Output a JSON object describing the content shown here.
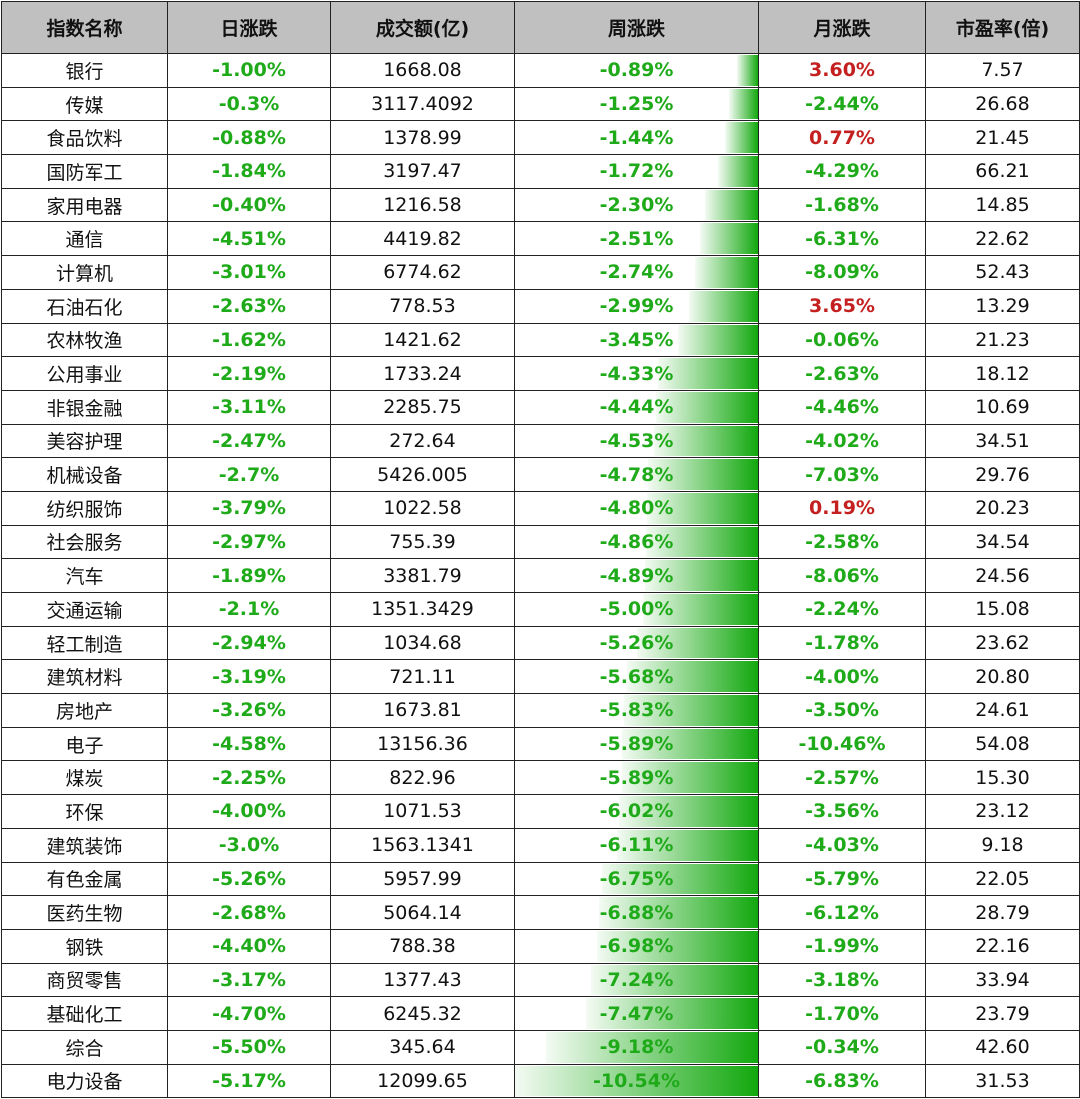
{
  "headers": [
    "指数名称",
    "日涨跌",
    "成交额(亿)",
    "周涨跌",
    "月涨跌",
    "市盈率(倍)"
  ],
  "rows": [
    {
      "name": "银行",
      "day": "-1.00%",
      "volume": "1668.08",
      "week": "-0.89%",
      "week_value": -0.89,
      "month": "3.60%",
      "pe": "7.57"
    },
    {
      "name": "传媒",
      "day": "-0.3%",
      "volume": "3117.4092",
      "week": "-1.25%",
      "week_value": -1.25,
      "month": "-2.44%",
      "pe": "26.68"
    },
    {
      "name": "食品饮料",
      "day": "-0.88%",
      "volume": "1378.99",
      "week": "-1.44%",
      "week_value": -1.44,
      "month": "0.77%",
      "pe": "21.45"
    },
    {
      "name": "国防军工",
      "day": "-1.84%",
      "volume": "3197.47",
      "week": "-1.72%",
      "week_value": -1.72,
      "month": "-4.29%",
      "pe": "66.21"
    },
    {
      "name": "家用电器",
      "day": "-0.40%",
      "volume": "1216.58",
      "week": "-2.30%",
      "week_value": -2.3,
      "month": "-1.68%",
      "pe": "14.85"
    },
    {
      "name": "通信",
      "day": "-4.51%",
      "volume": "4419.82",
      "week": "-2.51%",
      "week_value": -2.51,
      "month": "-6.31%",
      "pe": "22.62"
    },
    {
      "name": "计算机",
      "day": "-3.01%",
      "volume": "6774.62",
      "week": "-2.74%",
      "week_value": -2.74,
      "month": "-8.09%",
      "pe": "52.43"
    },
    {
      "name": "石油石化",
      "day": "-2.63%",
      "volume": "778.53",
      "week": "-2.99%",
      "week_value": -2.99,
      "month": "3.65%",
      "pe": "13.29"
    },
    {
      "name": "农林牧渔",
      "day": "-1.62%",
      "volume": "1421.62",
      "week": "-3.45%",
      "week_value": -3.45,
      "month": "-0.06%",
      "pe": "21.23"
    },
    {
      "name": "公用事业",
      "day": "-2.19%",
      "volume": "1733.24",
      "week": "-4.33%",
      "week_value": -4.33,
      "month": "-2.63%",
      "pe": "18.12"
    },
    {
      "name": "非银金融",
      "day": "-3.11%",
      "volume": "2285.75",
      "week": "-4.44%",
      "week_value": -4.44,
      "month": "-4.46%",
      "pe": "10.69"
    },
    {
      "name": "美容护理",
      "day": "-2.47%",
      "volume": "272.64",
      "week": "-4.53%",
      "week_value": -4.53,
      "month": "-4.02%",
      "pe": "34.51"
    },
    {
      "name": "机械设备",
      "day": "-2.7%",
      "volume": "5426.005",
      "week": "-4.78%",
      "week_value": -4.78,
      "month": "-7.03%",
      "pe": "29.76"
    },
    {
      "name": "纺织服饰",
      "day": "-3.79%",
      "volume": "1022.58",
      "week": "-4.80%",
      "week_value": -4.8,
      "month": "0.19%",
      "pe": "20.23"
    },
    {
      "name": "社会服务",
      "day": "-2.97%",
      "volume": "755.39",
      "week": "-4.86%",
      "week_value": -4.86,
      "month": "-2.58%",
      "pe": "34.54"
    },
    {
      "name": "汽车",
      "day": "-1.89%",
      "volume": "3381.79",
      "week": "-4.89%",
      "week_value": -4.89,
      "month": "-8.06%",
      "pe": "24.56"
    },
    {
      "name": "交通运输",
      "day": "-2.1%",
      "volume": "1351.3429",
      "week": "-5.00%",
      "week_value": -5.0,
      "month": "-2.24%",
      "pe": "15.08"
    },
    {
      "name": "轻工制造",
      "day": "-2.94%",
      "volume": "1034.68",
      "week": "-5.26%",
      "week_value": -5.26,
      "month": "-1.78%",
      "pe": "23.62"
    },
    {
      "name": "建筑材料",
      "day": "-3.19%",
      "volume": "721.11",
      "week": "-5.68%",
      "week_value": -5.68,
      "month": "-4.00%",
      "pe": "20.80"
    },
    {
      "name": "房地产",
      "day": "-3.26%",
      "volume": "1673.81",
      "week": "-5.83%",
      "week_value": -5.83,
      "month": "-3.50%",
      "pe": "24.61"
    },
    {
      "name": "电子",
      "day": "-4.58%",
      "volume": "13156.36",
      "week": "-5.89%",
      "week_value": -5.89,
      "month": "-10.46%",
      "pe": "54.08"
    },
    {
      "name": "煤炭",
      "day": "-2.25%",
      "volume": "822.96",
      "week": "-5.89%",
      "week_value": -5.89,
      "month": "-2.57%",
      "pe": "15.30"
    },
    {
      "name": "环保",
      "day": "-4.00%",
      "volume": "1071.53",
      "week": "-6.02%",
      "week_value": -6.02,
      "month": "-3.56%",
      "pe": "23.12"
    },
    {
      "name": "建筑装饰",
      "day": "-3.0%",
      "volume": "1563.1341",
      "week": "-6.11%",
      "week_value": -6.11,
      "month": "-4.03%",
      "pe": "9.18"
    },
    {
      "name": "有色金属",
      "day": "-5.26%",
      "volume": "5957.99",
      "week": "-6.75%",
      "week_value": -6.75,
      "month": "-5.79%",
      "pe": "22.05"
    },
    {
      "name": "医药生物",
      "day": "-2.68%",
      "volume": "5064.14",
      "week": "-6.88%",
      "week_value": -6.88,
      "month": "-6.12%",
      "pe": "28.79"
    },
    {
      "name": "钢铁",
      "day": "-4.40%",
      "volume": "788.38",
      "week": "-6.98%",
      "week_value": -6.98,
      "month": "-1.99%",
      "pe": "22.16"
    },
    {
      "name": "商贸零售",
      "day": "-3.17%",
      "volume": "1377.43",
      "week": "-7.24%",
      "week_value": -7.24,
      "month": "-3.18%",
      "pe": "33.94"
    },
    {
      "name": "基础化工",
      "day": "-4.70%",
      "volume": "6245.32",
      "week": "-7.47%",
      "week_value": -7.47,
      "month": "-1.70%",
      "pe": "23.79"
    },
    {
      "name": "综合",
      "day": "-5.50%",
      "volume": "345.64",
      "week": "-9.18%",
      "week_value": -9.18,
      "month": "-0.34%",
      "pe": "42.60"
    },
    {
      "name": "电力设备",
      "day": "-5.17%",
      "volume": "12099.65",
      "week": "-10.54%",
      "week_value": -10.54,
      "month": "-6.83%",
      "pe": "31.53"
    }
  ],
  "colors": {
    "negative": "#1faa1a",
    "positive": "#c42020",
    "header_bg": "#c0c0c0"
  }
}
